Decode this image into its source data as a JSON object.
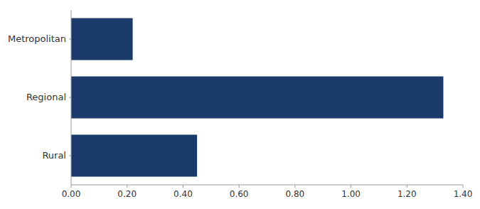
{
  "chart_data": {
    "type": "bar",
    "orientation": "horizontal",
    "categories": [
      "Rural",
      "Regional",
      "Metropolitan"
    ],
    "values": [
      0.45,
      1.33,
      0.22
    ],
    "color": "#1a3a6b",
    "xlim": [
      0,
      1.4
    ],
    "xticks": [
      {
        "value": 0.0,
        "label": "0.00"
      },
      {
        "value": 0.2,
        "label": "0.20"
      },
      {
        "value": 0.4,
        "label": "0.40"
      },
      {
        "value": 0.6,
        "label": "0.60"
      },
      {
        "value": 0.8,
        "label": "0.80"
      },
      {
        "value": 1.0,
        "label": "1.00"
      },
      {
        "value": 1.2,
        "label": "1.20"
      },
      {
        "value": 1.4,
        "label": "1.40"
      }
    ],
    "grid": false
  }
}
